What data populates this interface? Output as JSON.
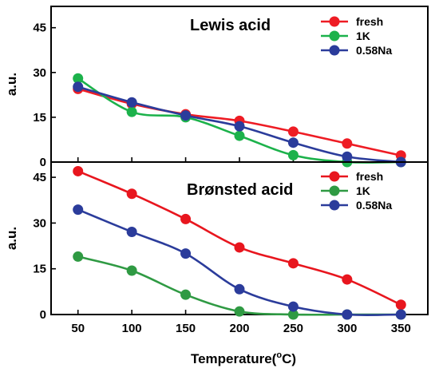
{
  "figure": {
    "xlabel_main": "Temperature(",
    "xlabel_sup": "o",
    "xlabel_end": "C)"
  },
  "chart_data": [
    {
      "type": "line",
      "title": "Lewis acid",
      "xlabel": "Temperature(oC)",
      "ylabel": "a.u.",
      "x": [
        50,
        100,
        150,
        200,
        250,
        300,
        350
      ],
      "xlim": [
        25,
        375
      ],
      "ylim": [
        0,
        50
      ],
      "yticks": [
        0,
        15,
        30,
        45
      ],
      "legend_position": "top-right",
      "grid": false,
      "series": [
        {
          "name": "fresh",
          "color": "#ee1c24",
          "values": [
            24.5,
            19.5,
            16,
            13.8,
            10.2,
            6.2,
            2.2
          ]
        },
        {
          "name": "1K",
          "color": "#1cb24b",
          "values": [
            28,
            16.8,
            15,
            8.8,
            2.3,
            0,
            0
          ]
        },
        {
          "name": "0.58Na",
          "color": "#2b3c9b",
          "values": [
            25.2,
            20,
            15.6,
            12,
            6.5,
            1.8,
            0
          ]
        }
      ]
    },
    {
      "type": "line",
      "title": "Brønsted acid",
      "xlabel": "Temperature(oC)",
      "ylabel": "a.u.",
      "x": [
        50,
        100,
        150,
        200,
        250,
        300,
        350
      ],
      "xlim": [
        25,
        375
      ],
      "ylim": [
        0,
        50
      ],
      "yticks": [
        0,
        15,
        30,
        45
      ],
      "xticks": [
        50,
        100,
        150,
        200,
        250,
        300,
        350
      ],
      "legend_position": "top-right",
      "grid": false,
      "series": [
        {
          "name": "fresh",
          "color": "#e8161e",
          "values": [
            47,
            39.6,
            31.3,
            22,
            16.8,
            11.5,
            3.2
          ]
        },
        {
          "name": "1K",
          "color": "#2f9a43",
          "values": [
            19,
            14.4,
            6.5,
            1,
            0,
            0,
            0
          ]
        },
        {
          "name": "0.58Na",
          "color": "#2b3c9b",
          "values": [
            34.4,
            27.1,
            20,
            8.3,
            2.6,
            0,
            0
          ]
        }
      ]
    }
  ]
}
